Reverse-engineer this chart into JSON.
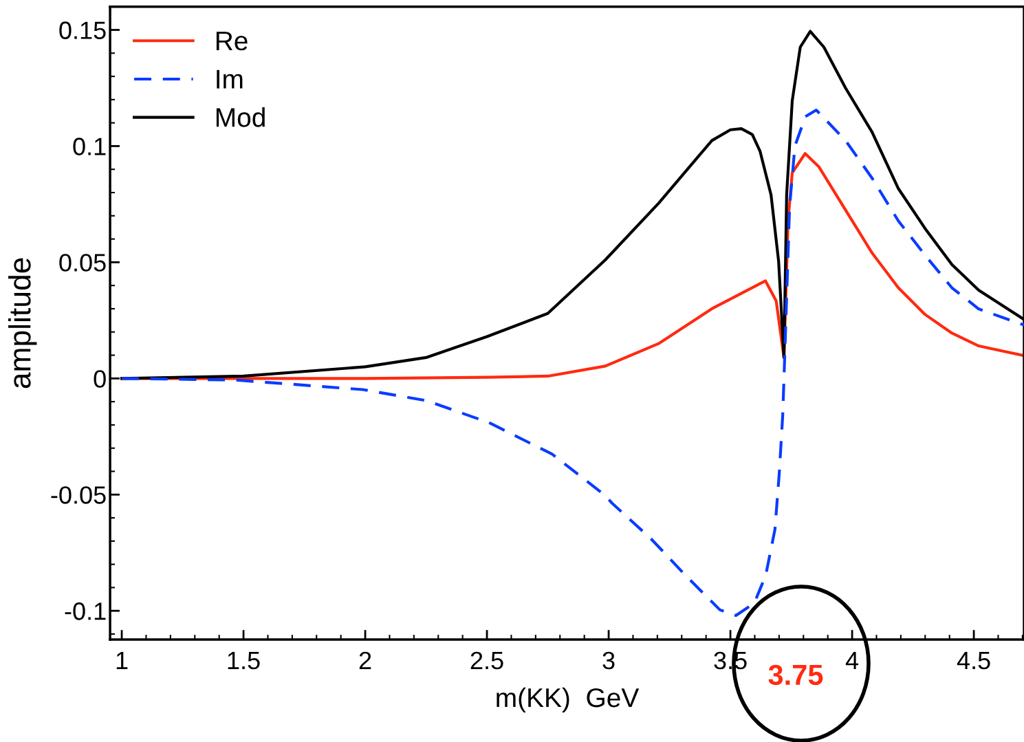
{
  "chart_data": {
    "type": "line",
    "xlabel": "m(KK)  GeV",
    "ylabel": "amplitude",
    "xlim": [
      0.952,
      4.706
    ],
    "ylim": [
      -0.1124,
      0.16
    ],
    "xticks": [
      1,
      1.5,
      2,
      2.5,
      3,
      3.5,
      4,
      4.5
    ],
    "yticks": [
      {
        "value": -0.1,
        "label": "-0.1"
      },
      {
        "value": -0.05,
        "label": "-0.05"
      },
      0,
      0.05,
      0.1,
      0.15
    ],
    "legend": "top left",
    "grid": false,
    "annotations": [
      "3.75"
    ],
    "series": [
      {
        "name": "Re",
        "color": "#ff2a10",
        "line_style": "solid",
        "x": [
          1.0,
          1.5,
          2.0,
          2.5,
          2.75,
          2.986,
          3.205,
          3.424,
          3.644,
          3.688,
          3.72,
          3.737,
          3.754,
          3.807,
          3.864,
          3.973,
          4.082,
          4.19,
          4.3,
          4.41,
          4.52,
          4.706
        ],
        "values": [
          0,
          0,
          0,
          0.0005,
          0.001,
          0.0053,
          0.015,
          0.03,
          0.042,
          0.0334,
          0.009,
          0.068,
          0.0885,
          0.0968,
          0.091,
          0.0725,
          0.054,
          0.039,
          0.0275,
          0.0195,
          0.014,
          0.0098
        ]
      },
      {
        "name": "Im",
        "color": "#0a3cff",
        "line_style": "dashed",
        "x": [
          1.0,
          1.471,
          1.99,
          2.25,
          2.508,
          2.768,
          2.985,
          3.014,
          3.174,
          3.316,
          3.457,
          3.523,
          3.598,
          3.645,
          3.683,
          3.701,
          3.715,
          3.722,
          3.743,
          3.765,
          3.808,
          3.853,
          3.973,
          4.082,
          4.19,
          4.3,
          4.41,
          4.52,
          4.706
        ],
        "values": [
          0,
          -0.0007,
          -0.0048,
          -0.0095,
          -0.019,
          -0.0326,
          -0.0503,
          -0.0537,
          -0.069,
          -0.0848,
          -0.0996,
          -0.102,
          -0.0967,
          -0.0848,
          -0.065,
          -0.0404,
          -0.0157,
          0.006,
          0.0737,
          0.1,
          0.1127,
          0.1155,
          0.1024,
          0.0862,
          0.0678,
          0.053,
          0.039,
          0.0299,
          0.023
        ]
      },
      {
        "name": "Mod",
        "color": "#000000",
        "line_style": "solid",
        "x": [
          1.0,
          1.5,
          2.0,
          2.25,
          2.5,
          2.75,
          2.986,
          3.205,
          3.424,
          3.5,
          3.545,
          3.59,
          3.622,
          3.667,
          3.698,
          3.72,
          3.731,
          3.754,
          3.787,
          3.828,
          3.884,
          3.973,
          4.082,
          4.19,
          4.3,
          4.41,
          4.52,
          4.706
        ],
        "values": [
          0,
          0.001,
          0.005,
          0.009,
          0.018,
          0.028,
          0.051,
          0.0754,
          0.1024,
          0.107,
          0.1075,
          0.105,
          0.0977,
          0.079,
          0.0505,
          0.009,
          0.079,
          0.1195,
          0.1426,
          0.1494,
          0.1426,
          0.125,
          0.106,
          0.0817,
          0.0645,
          0.049,
          0.038,
          0.0254
        ]
      }
    ]
  }
}
